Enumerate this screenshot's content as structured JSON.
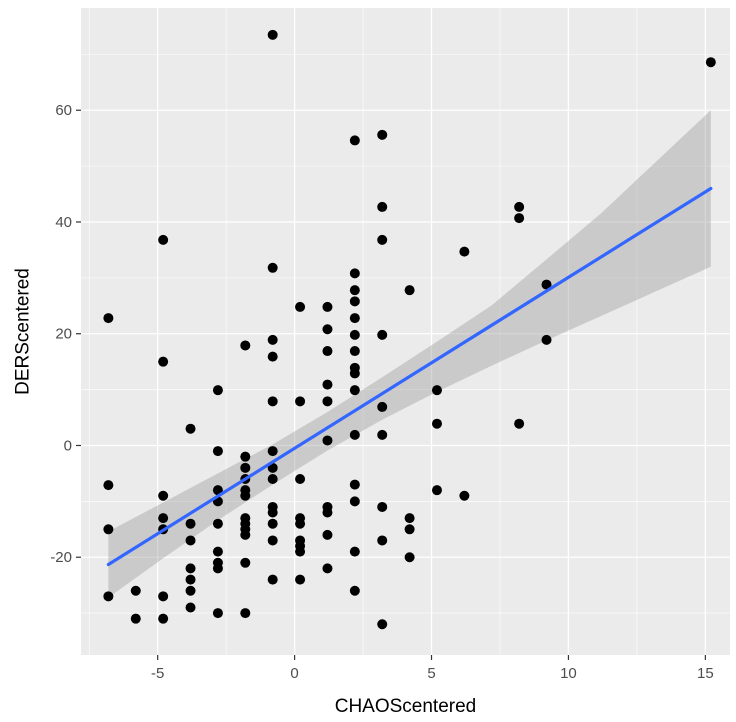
{
  "chart_data": {
    "type": "scatter",
    "title": "",
    "xlabel": "CHAOScentered",
    "ylabel": "DERScentered",
    "xlim": [
      -7.8,
      15.9
    ],
    "ylim": [
      -37.5,
      78.3
    ],
    "x_ticks": [
      -5,
      0,
      5,
      10,
      15
    ],
    "y_ticks": [
      -20,
      0,
      20,
      40,
      60
    ],
    "x_tick_labels": [
      "-5",
      "0",
      "5",
      "10",
      "15"
    ],
    "y_tick_labels": [
      "-20",
      "0",
      "20",
      "40",
      "60"
    ],
    "grid": true,
    "legend": "none",
    "points": [
      {
        "x": -6.8,
        "y": 22.8
      },
      {
        "x": -6.8,
        "y": -7.1
      },
      {
        "x": -6.8,
        "y": -15.0
      },
      {
        "x": -6.8,
        "y": -27.0
      },
      {
        "x": -5.8,
        "y": -26.0
      },
      {
        "x": -5.8,
        "y": -31.0
      },
      {
        "x": -4.8,
        "y": 36.8
      },
      {
        "x": -4.8,
        "y": 15.0
      },
      {
        "x": -4.8,
        "y": -9.0
      },
      {
        "x": -4.8,
        "y": -13.0
      },
      {
        "x": -4.8,
        "y": -15.0
      },
      {
        "x": -4.8,
        "y": -27.0
      },
      {
        "x": -4.8,
        "y": -31.0
      },
      {
        "x": -3.8,
        "y": 3.0
      },
      {
        "x": -3.8,
        "y": -14.0
      },
      {
        "x": -3.8,
        "y": -17.0
      },
      {
        "x": -3.8,
        "y": -22.0
      },
      {
        "x": -3.8,
        "y": -24.0
      },
      {
        "x": -3.8,
        "y": -26.0
      },
      {
        "x": -3.8,
        "y": -29.0
      },
      {
        "x": -2.8,
        "y": 9.9
      },
      {
        "x": -2.8,
        "y": -1.0
      },
      {
        "x": -2.8,
        "y": -8.0
      },
      {
        "x": -2.8,
        "y": -10.0
      },
      {
        "x": -2.8,
        "y": -14.0
      },
      {
        "x": -2.8,
        "y": -19.0
      },
      {
        "x": -2.8,
        "y": -21.0
      },
      {
        "x": -2.8,
        "y": -22.0
      },
      {
        "x": -2.8,
        "y": -30.0
      },
      {
        "x": -1.8,
        "y": 17.9
      },
      {
        "x": -1.8,
        "y": -2.0
      },
      {
        "x": -1.8,
        "y": -4.0
      },
      {
        "x": -1.8,
        "y": -6.0
      },
      {
        "x": -1.8,
        "y": -8.0
      },
      {
        "x": -1.8,
        "y": -9.0
      },
      {
        "x": -1.8,
        "y": -13.0
      },
      {
        "x": -1.8,
        "y": -14.0
      },
      {
        "x": -1.8,
        "y": -15.0
      },
      {
        "x": -1.8,
        "y": -16.0
      },
      {
        "x": -1.8,
        "y": -21.0
      },
      {
        "x": -1.8,
        "y": -30.0
      },
      {
        "x": -0.8,
        "y": 73.5
      },
      {
        "x": -0.8,
        "y": 31.8
      },
      {
        "x": -0.8,
        "y": 18.9
      },
      {
        "x": -0.8,
        "y": 15.9
      },
      {
        "x": -0.8,
        "y": 7.9
      },
      {
        "x": -0.8,
        "y": -1.0
      },
      {
        "x": -0.8,
        "y": -4.0
      },
      {
        "x": -0.8,
        "y": -6.0
      },
      {
        "x": -0.8,
        "y": -11.0
      },
      {
        "x": -0.8,
        "y": -12.0
      },
      {
        "x": -0.8,
        "y": -14.0
      },
      {
        "x": -0.8,
        "y": -17.0
      },
      {
        "x": -0.8,
        "y": -24.0
      },
      {
        "x": 0.2,
        "y": 24.8
      },
      {
        "x": 0.2,
        "y": 7.9
      },
      {
        "x": 0.2,
        "y": -6.0
      },
      {
        "x": 0.2,
        "y": -13.0
      },
      {
        "x": 0.2,
        "y": -14.0
      },
      {
        "x": 0.2,
        "y": -17.0
      },
      {
        "x": 0.2,
        "y": -18.0
      },
      {
        "x": 0.2,
        "y": -19.0
      },
      {
        "x": 0.2,
        "y": -24.0
      },
      {
        "x": 1.2,
        "y": 24.8
      },
      {
        "x": 1.2,
        "y": 20.8
      },
      {
        "x": 1.2,
        "y": 16.9
      },
      {
        "x": 1.2,
        "y": 10.9
      },
      {
        "x": 1.2,
        "y": 7.9
      },
      {
        "x": 1.2,
        "y": 0.9
      },
      {
        "x": 1.2,
        "y": -11.0
      },
      {
        "x": 1.2,
        "y": -12.0
      },
      {
        "x": 1.2,
        "y": -16.0
      },
      {
        "x": 1.2,
        "y": -22.0
      },
      {
        "x": 2.2,
        "y": 54.6
      },
      {
        "x": 2.2,
        "y": 30.8
      },
      {
        "x": 2.2,
        "y": 27.8
      },
      {
        "x": 2.2,
        "y": 25.8
      },
      {
        "x": 2.2,
        "y": 22.8
      },
      {
        "x": 2.2,
        "y": 19.8
      },
      {
        "x": 2.2,
        "y": 16.9
      },
      {
        "x": 2.2,
        "y": 13.9
      },
      {
        "x": 2.2,
        "y": 12.9
      },
      {
        "x": 2.2,
        "y": 9.9
      },
      {
        "x": 2.2,
        "y": 1.9
      },
      {
        "x": 2.2,
        "y": -7.0
      },
      {
        "x": 2.2,
        "y": -10.0
      },
      {
        "x": 2.2,
        "y": -19.0
      },
      {
        "x": 2.2,
        "y": -26.0
      },
      {
        "x": 3.2,
        "y": 55.6
      },
      {
        "x": 3.2,
        "y": 42.7
      },
      {
        "x": 3.2,
        "y": 36.8
      },
      {
        "x": 3.2,
        "y": 19.8
      },
      {
        "x": 3.2,
        "y": 6.9
      },
      {
        "x": 3.2,
        "y": 1.9
      },
      {
        "x": 3.2,
        "y": -11.0
      },
      {
        "x": 3.2,
        "y": -17.0
      },
      {
        "x": 3.2,
        "y": -32.0
      },
      {
        "x": 4.2,
        "y": 27.8
      },
      {
        "x": 4.2,
        "y": -13.0
      },
      {
        "x": 4.2,
        "y": -15.0
      },
      {
        "x": 4.2,
        "y": -20.0
      },
      {
        "x": 5.2,
        "y": 9.9
      },
      {
        "x": 5.2,
        "y": 3.9
      },
      {
        "x": 5.2,
        "y": -8.0
      },
      {
        "x": 6.2,
        "y": 34.7
      },
      {
        "x": 6.2,
        "y": -9.0
      },
      {
        "x": 8.2,
        "y": 42.7
      },
      {
        "x": 8.2,
        "y": 40.7
      },
      {
        "x": 8.2,
        "y": 3.9
      },
      {
        "x": 9.2,
        "y": 28.8
      },
      {
        "x": 9.2,
        "y": 18.9
      },
      {
        "x": 15.2,
        "y": 68.6
      }
    ],
    "fit_line": {
      "x": [
        -6.8,
        15.2
      ],
      "y": [
        -21.3,
        46.0
      ]
    },
    "confidence_band": {
      "x": [
        -6.8,
        -4.8,
        -2.8,
        -0.8,
        1.2,
        3.2,
        5.2,
        7.2,
        9.2,
        11.2,
        13.2,
        15.2
      ],
      "lower": [
        -27.2,
        -20.2,
        -13.4,
        -7.0,
        -0.9,
        4.6,
        9.6,
        14.3,
        18.8,
        23.2,
        27.6,
        32.0
      ],
      "upper": [
        -15.4,
        -10.2,
        -5.0,
        0.2,
        6.0,
        12.2,
        18.6,
        25.1,
        33.3,
        41.6,
        50.8,
        60.0
      ]
    },
    "colors": {
      "panel": "#ebebeb",
      "grid": "#ffffff",
      "point": "#000000",
      "line": "#3366ff",
      "band": "#999999"
    }
  }
}
